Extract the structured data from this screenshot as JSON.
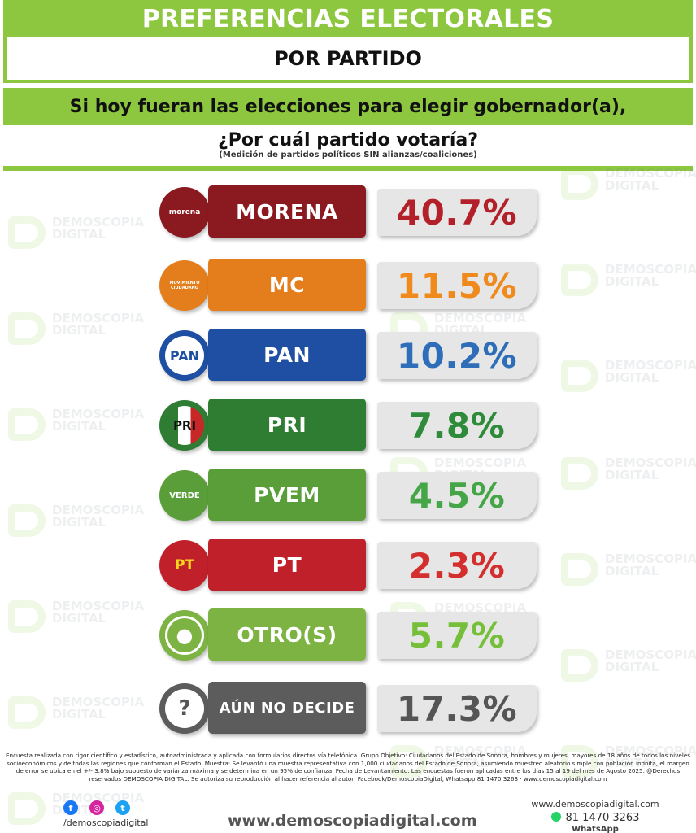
{
  "header": {
    "title": "PREFERENCIAS ELECTORALES",
    "subtitle": "POR PARTIDO",
    "question_line1": "Si hoy fueran las elecciones para elegir gobernador(a),",
    "question_line2": "¿Por cuál partido votaría?",
    "note": "(Medición de partidos políticos SIN alianzas/coaliciones)"
  },
  "watermark": {
    "line1": "DEMOSCOPIA",
    "line2": "DIGITAL"
  },
  "chart_data": {
    "type": "table",
    "unit": "%",
    "rows": [
      {
        "party": "MORENA",
        "value": "40.7%",
        "color": "#8b1a20",
        "value_color": "#b3202a",
        "logo_text": "morena",
        "icon": "morena-logo-icon"
      },
      {
        "party": "MC",
        "value": "11.5%",
        "color": "#e47d1b",
        "value_color": "#f08a1d",
        "logo_text": "MOVIMIENTO CIUDADANO",
        "icon": "mc-logo-icon"
      },
      {
        "party": "PAN",
        "value": "10.2%",
        "color": "#1f4fa3",
        "value_color": "#2e6db8",
        "logo_text": "PAN",
        "icon": "pan-logo-icon"
      },
      {
        "party": "PRI",
        "value": "7.8%",
        "color": "#2e7d32",
        "value_color": "#2e8b3a",
        "logo_text": "PRI",
        "icon": "pri-logo-icon"
      },
      {
        "party": "PVEM",
        "value": "4.5%",
        "color": "#5a9e3a",
        "value_color": "#45a648",
        "logo_text": "VERDE",
        "icon": "pvem-logo-icon"
      },
      {
        "party": "PT",
        "value": "2.3%",
        "color": "#c0202a",
        "value_color": "#d32f2f",
        "logo_text": "PT",
        "icon": "pt-logo-icon"
      },
      {
        "party": "OTRO(S)",
        "value": "5.7%",
        "color": "#7cb342",
        "value_color": "#76bf3a",
        "logo_text": "",
        "icon": "person-icon"
      },
      {
        "party": "AÚN NO DECIDE",
        "value": "17.3%",
        "color": "#5c5c5c",
        "value_color": "#555555",
        "logo_text": "?",
        "icon": "question-mark-icon"
      }
    ]
  },
  "footer": {
    "methodology": "Encuesta realizada con rigor científico y estadístico, autoadministrada y aplicada con formularios directos vía telefónica. Grupo Objetivo: Ciudadanos del Estado de Sonora, hombres y mujeres, mayores de 18 años de todos los niveles socioeconómicos y de todas las regiones que conforman el Estado. Muestra: Se levantó una muestra representativa con 1,000 ciudadanos del Estado de Sonora, asumiendo muestreo aleatorio simple con población infinita, el margen de error se ubica en el +/- 3.8% bajo supuesto de varianza máxima y se determina en un 95% de confianza. Fecha de Levantamiento. Las encuestas fueron aplicadas entre los días 15 al 19 del mes de Agosto 2025. @Derechos reservados DEMOSCOPIA DIGITAL. Se autoriza su reproducción al hacer referencia al autor, Facebook/DemoscopiaDigital, Whatsapp 81 1470 3263 · www.demoscopiadigital.com",
    "social_handle": "/demoscopiadigital",
    "website_main": "www.demoscopiadigital.com",
    "website_small": "www.demoscopiadigital.com",
    "phone": "81 1470 3263",
    "whatsapp_label": "WhatsApp"
  }
}
